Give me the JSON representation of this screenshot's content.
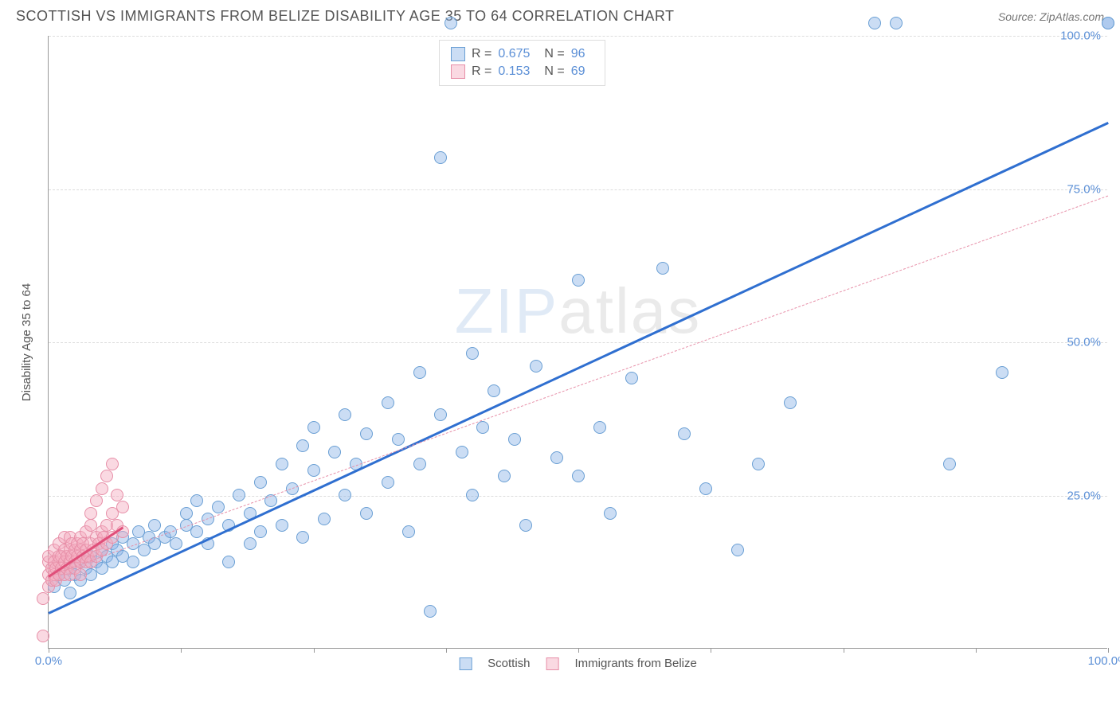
{
  "header": {
    "title": "SCOTTISH VS IMMIGRANTS FROM BELIZE DISABILITY AGE 35 TO 64 CORRELATION CHART",
    "source_prefix": "Source: ",
    "source_name": "ZipAtlas.com"
  },
  "ylabel": "Disability Age 35 to 64",
  "watermark": {
    "bold": "ZIP",
    "thin": "atlas"
  },
  "chart": {
    "type": "scatter",
    "xlim": [
      0,
      100
    ],
    "ylim": [
      0,
      100
    ],
    "xticks": [
      0,
      12.5,
      25,
      37.5,
      50,
      62.5,
      75,
      87.5,
      100
    ],
    "yticks": [
      25,
      50,
      75,
      100
    ],
    "x_labels_shown": [
      {
        "val": 0,
        "text": "0.0%"
      },
      {
        "val": 100,
        "text": "100.0%"
      }
    ],
    "y_labels_shown": [
      {
        "val": 25,
        "text": "25.0%"
      },
      {
        "val": 50,
        "text": "50.0%"
      },
      {
        "val": 75,
        "text": "75.0%"
      },
      {
        "val": 100,
        "text": "100.0%"
      }
    ],
    "background_color": "#ffffff",
    "grid_color": "#dddddd",
    "tick_label_color": "#5b8fd6",
    "marker_radius": 8,
    "marker_border_width": 1
  },
  "series": [
    {
      "name": "Scottish",
      "R": "0.675",
      "N": "96",
      "fill": "rgba(140,180,230,0.45)",
      "stroke": "#6a9fd4",
      "trend": {
        "x1": 0,
        "y1": 6,
        "x2": 100,
        "y2": 86,
        "color": "#2f6fd0",
        "width": 3,
        "dash": "solid"
      },
      "points": [
        [
          0.5,
          10
        ],
        [
          1,
          12
        ],
        [
          1.5,
          11
        ],
        [
          2,
          13
        ],
        [
          2,
          9
        ],
        [
          2.5,
          12
        ],
        [
          3,
          14
        ],
        [
          3,
          11
        ],
        [
          3.5,
          13
        ],
        [
          4,
          12
        ],
        [
          4,
          15
        ],
        [
          4.5,
          14
        ],
        [
          5,
          13
        ],
        [
          5,
          16
        ],
        [
          5.5,
          15
        ],
        [
          6,
          14
        ],
        [
          6,
          17
        ],
        [
          6.5,
          16
        ],
        [
          7,
          15
        ],
        [
          7,
          18
        ],
        [
          8,
          14
        ],
        [
          8,
          17
        ],
        [
          8.5,
          19
        ],
        [
          9,
          16
        ],
        [
          9.5,
          18
        ],
        [
          10,
          17
        ],
        [
          10,
          20
        ],
        [
          11,
          18
        ],
        [
          11.5,
          19
        ],
        [
          12,
          17
        ],
        [
          13,
          20
        ],
        [
          13,
          22
        ],
        [
          14,
          19
        ],
        [
          14,
          24
        ],
        [
          15,
          21
        ],
        [
          15,
          17
        ],
        [
          16,
          23
        ],
        [
          17,
          20
        ],
        [
          17,
          14
        ],
        [
          18,
          25
        ],
        [
          19,
          22
        ],
        [
          19,
          17
        ],
        [
          20,
          27
        ],
        [
          20,
          19
        ],
        [
          21,
          24
        ],
        [
          22,
          30
        ],
        [
          22,
          20
        ],
        [
          23,
          26
        ],
        [
          24,
          33
        ],
        [
          24,
          18
        ],
        [
          25,
          29
        ],
        [
          25,
          36
        ],
        [
          26,
          21
        ],
        [
          27,
          32
        ],
        [
          28,
          38
        ],
        [
          28,
          25
        ],
        [
          29,
          30
        ],
        [
          30,
          35
        ],
        [
          30,
          22
        ],
        [
          32,
          40
        ],
        [
          32,
          27
        ],
        [
          33,
          34
        ],
        [
          34,
          19
        ],
        [
          35,
          45
        ],
        [
          35,
          30
        ],
        [
          36,
          6
        ],
        [
          37,
          38
        ],
        [
          37,
          80
        ],
        [
          38,
          102
        ],
        [
          39,
          32
        ],
        [
          40,
          48
        ],
        [
          40,
          25
        ],
        [
          41,
          36
        ],
        [
          42,
          42
        ],
        [
          43,
          28
        ],
        [
          44,
          34
        ],
        [
          45,
          20
        ],
        [
          46,
          46
        ],
        [
          48,
          31
        ],
        [
          50,
          60
        ],
        [
          50,
          28
        ],
        [
          52,
          36
        ],
        [
          53,
          22
        ],
        [
          55,
          44
        ],
        [
          58,
          62
        ],
        [
          60,
          35
        ],
        [
          62,
          26
        ],
        [
          65,
          16
        ],
        [
          67,
          30
        ],
        [
          70,
          40
        ],
        [
          78,
          102
        ],
        [
          80,
          102
        ],
        [
          85,
          30
        ],
        [
          90,
          45
        ],
        [
          100,
          102
        ],
        [
          100,
          102
        ]
      ]
    },
    {
      "name": "Immigrants from Belize",
      "R": "0.153",
      "N": "69",
      "fill": "rgba(245,170,190,0.45)",
      "stroke": "#e78fa8",
      "trend": {
        "x1": 0,
        "y1": 12,
        "x2": 100,
        "y2": 74,
        "color": "#e78fa8",
        "width": 1,
        "dash": "dashed"
      },
      "trend_solid": {
        "x1": 0,
        "y1": 12,
        "x2": 7,
        "y2": 20,
        "color": "#e04f7a",
        "width": 3,
        "dash": "solid"
      },
      "points": [
        [
          -0.5,
          2
        ],
        [
          -0.5,
          8
        ],
        [
          0,
          10
        ],
        [
          0,
          12
        ],
        [
          0,
          14
        ],
        [
          0,
          15
        ],
        [
          0.3,
          11
        ],
        [
          0.3,
          13
        ],
        [
          0.5,
          12
        ],
        [
          0.5,
          14
        ],
        [
          0.5,
          16
        ],
        [
          0.7,
          11
        ],
        [
          0.7,
          13
        ],
        [
          1,
          12
        ],
        [
          1,
          14
        ],
        [
          1,
          15
        ],
        [
          1,
          17
        ],
        [
          1.2,
          13
        ],
        [
          1.2,
          15
        ],
        [
          1.5,
          12
        ],
        [
          1.5,
          14
        ],
        [
          1.5,
          16
        ],
        [
          1.5,
          18
        ],
        [
          1.7,
          13
        ],
        [
          1.7,
          15
        ],
        [
          2,
          14
        ],
        [
          2,
          16
        ],
        [
          2,
          12
        ],
        [
          2,
          18
        ],
        [
          2.2,
          15
        ],
        [
          2.2,
          17
        ],
        [
          2.5,
          14
        ],
        [
          2.5,
          16
        ],
        [
          2.5,
          13
        ],
        [
          2.7,
          15
        ],
        [
          2.7,
          17
        ],
        [
          3,
          14
        ],
        [
          3,
          16
        ],
        [
          3,
          18
        ],
        [
          3,
          12
        ],
        [
          3.2,
          15
        ],
        [
          3.2,
          17
        ],
        [
          3.5,
          14
        ],
        [
          3.5,
          16
        ],
        [
          3.5,
          19
        ],
        [
          3.7,
          15
        ],
        [
          4,
          14
        ],
        [
          4,
          17
        ],
        [
          4,
          20
        ],
        [
          4,
          22
        ],
        [
          4.2,
          16
        ],
        [
          4.5,
          15
        ],
        [
          4.5,
          18
        ],
        [
          4.5,
          24
        ],
        [
          4.7,
          17
        ],
        [
          5,
          16
        ],
        [
          5,
          19
        ],
        [
          5,
          26
        ],
        [
          5.2,
          18
        ],
        [
          5.5,
          17
        ],
        [
          5.5,
          20
        ],
        [
          5.5,
          28
        ],
        [
          6,
          18
        ],
        [
          6,
          22
        ],
        [
          6,
          30
        ],
        [
          6.5,
          20
        ],
        [
          6.5,
          25
        ],
        [
          7,
          19
        ],
        [
          7,
          23
        ]
      ]
    }
  ],
  "stats_box": {
    "labels": {
      "R": "R =",
      "N": "N ="
    }
  },
  "legend": {
    "items": [
      {
        "label": "Scottish",
        "series_idx": 0
      },
      {
        "label": "Immigrants from Belize",
        "series_idx": 1
      }
    ]
  }
}
